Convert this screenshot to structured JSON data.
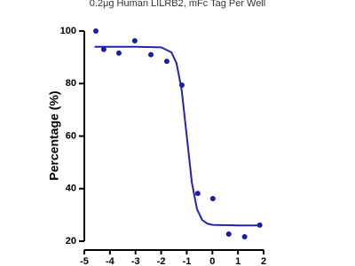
{
  "chart_data": {
    "type": "scatter",
    "title": "0.2μg Human LILRB2, mFc Tag Per Well",
    "y_label": "Percentage (%)",
    "xlim": [
      -5,
      2
    ],
    "xticks": [
      -5,
      -4,
      -3,
      -2,
      -1,
      0,
      1,
      2
    ],
    "ylim": [
      20,
      100
    ],
    "yticks": [
      20,
      40,
      60,
      80,
      100
    ],
    "series": [
      {
        "type": "scatter",
        "color": "#1c1ca8",
        "x": [
          -4.55,
          -4.24,
          -3.65,
          -3.03,
          -2.4,
          -1.78,
          -1.19,
          -0.57,
          0.02,
          0.64,
          1.26,
          1.85
        ],
        "values": [
          100,
          93,
          91.6,
          96.3,
          91,
          88.5,
          79.4,
          38.2,
          36.2,
          22.7,
          21.7,
          26.1
        ]
      },
      {
        "type": "line",
        "color": "#2222b4",
        "x": [
          -4.6,
          -3,
          -2,
          -1.6,
          -1.4,
          -1.2,
          -1.0,
          -0.8,
          -0.6,
          -0.4,
          -0.2,
          0,
          1,
          1.8
        ],
        "values": [
          94,
          94,
          93.8,
          91.9,
          87.8,
          77.7,
          60,
          42.3,
          32.2,
          28.1,
          26.7,
          26.2,
          26,
          26
        ]
      }
    ]
  }
}
